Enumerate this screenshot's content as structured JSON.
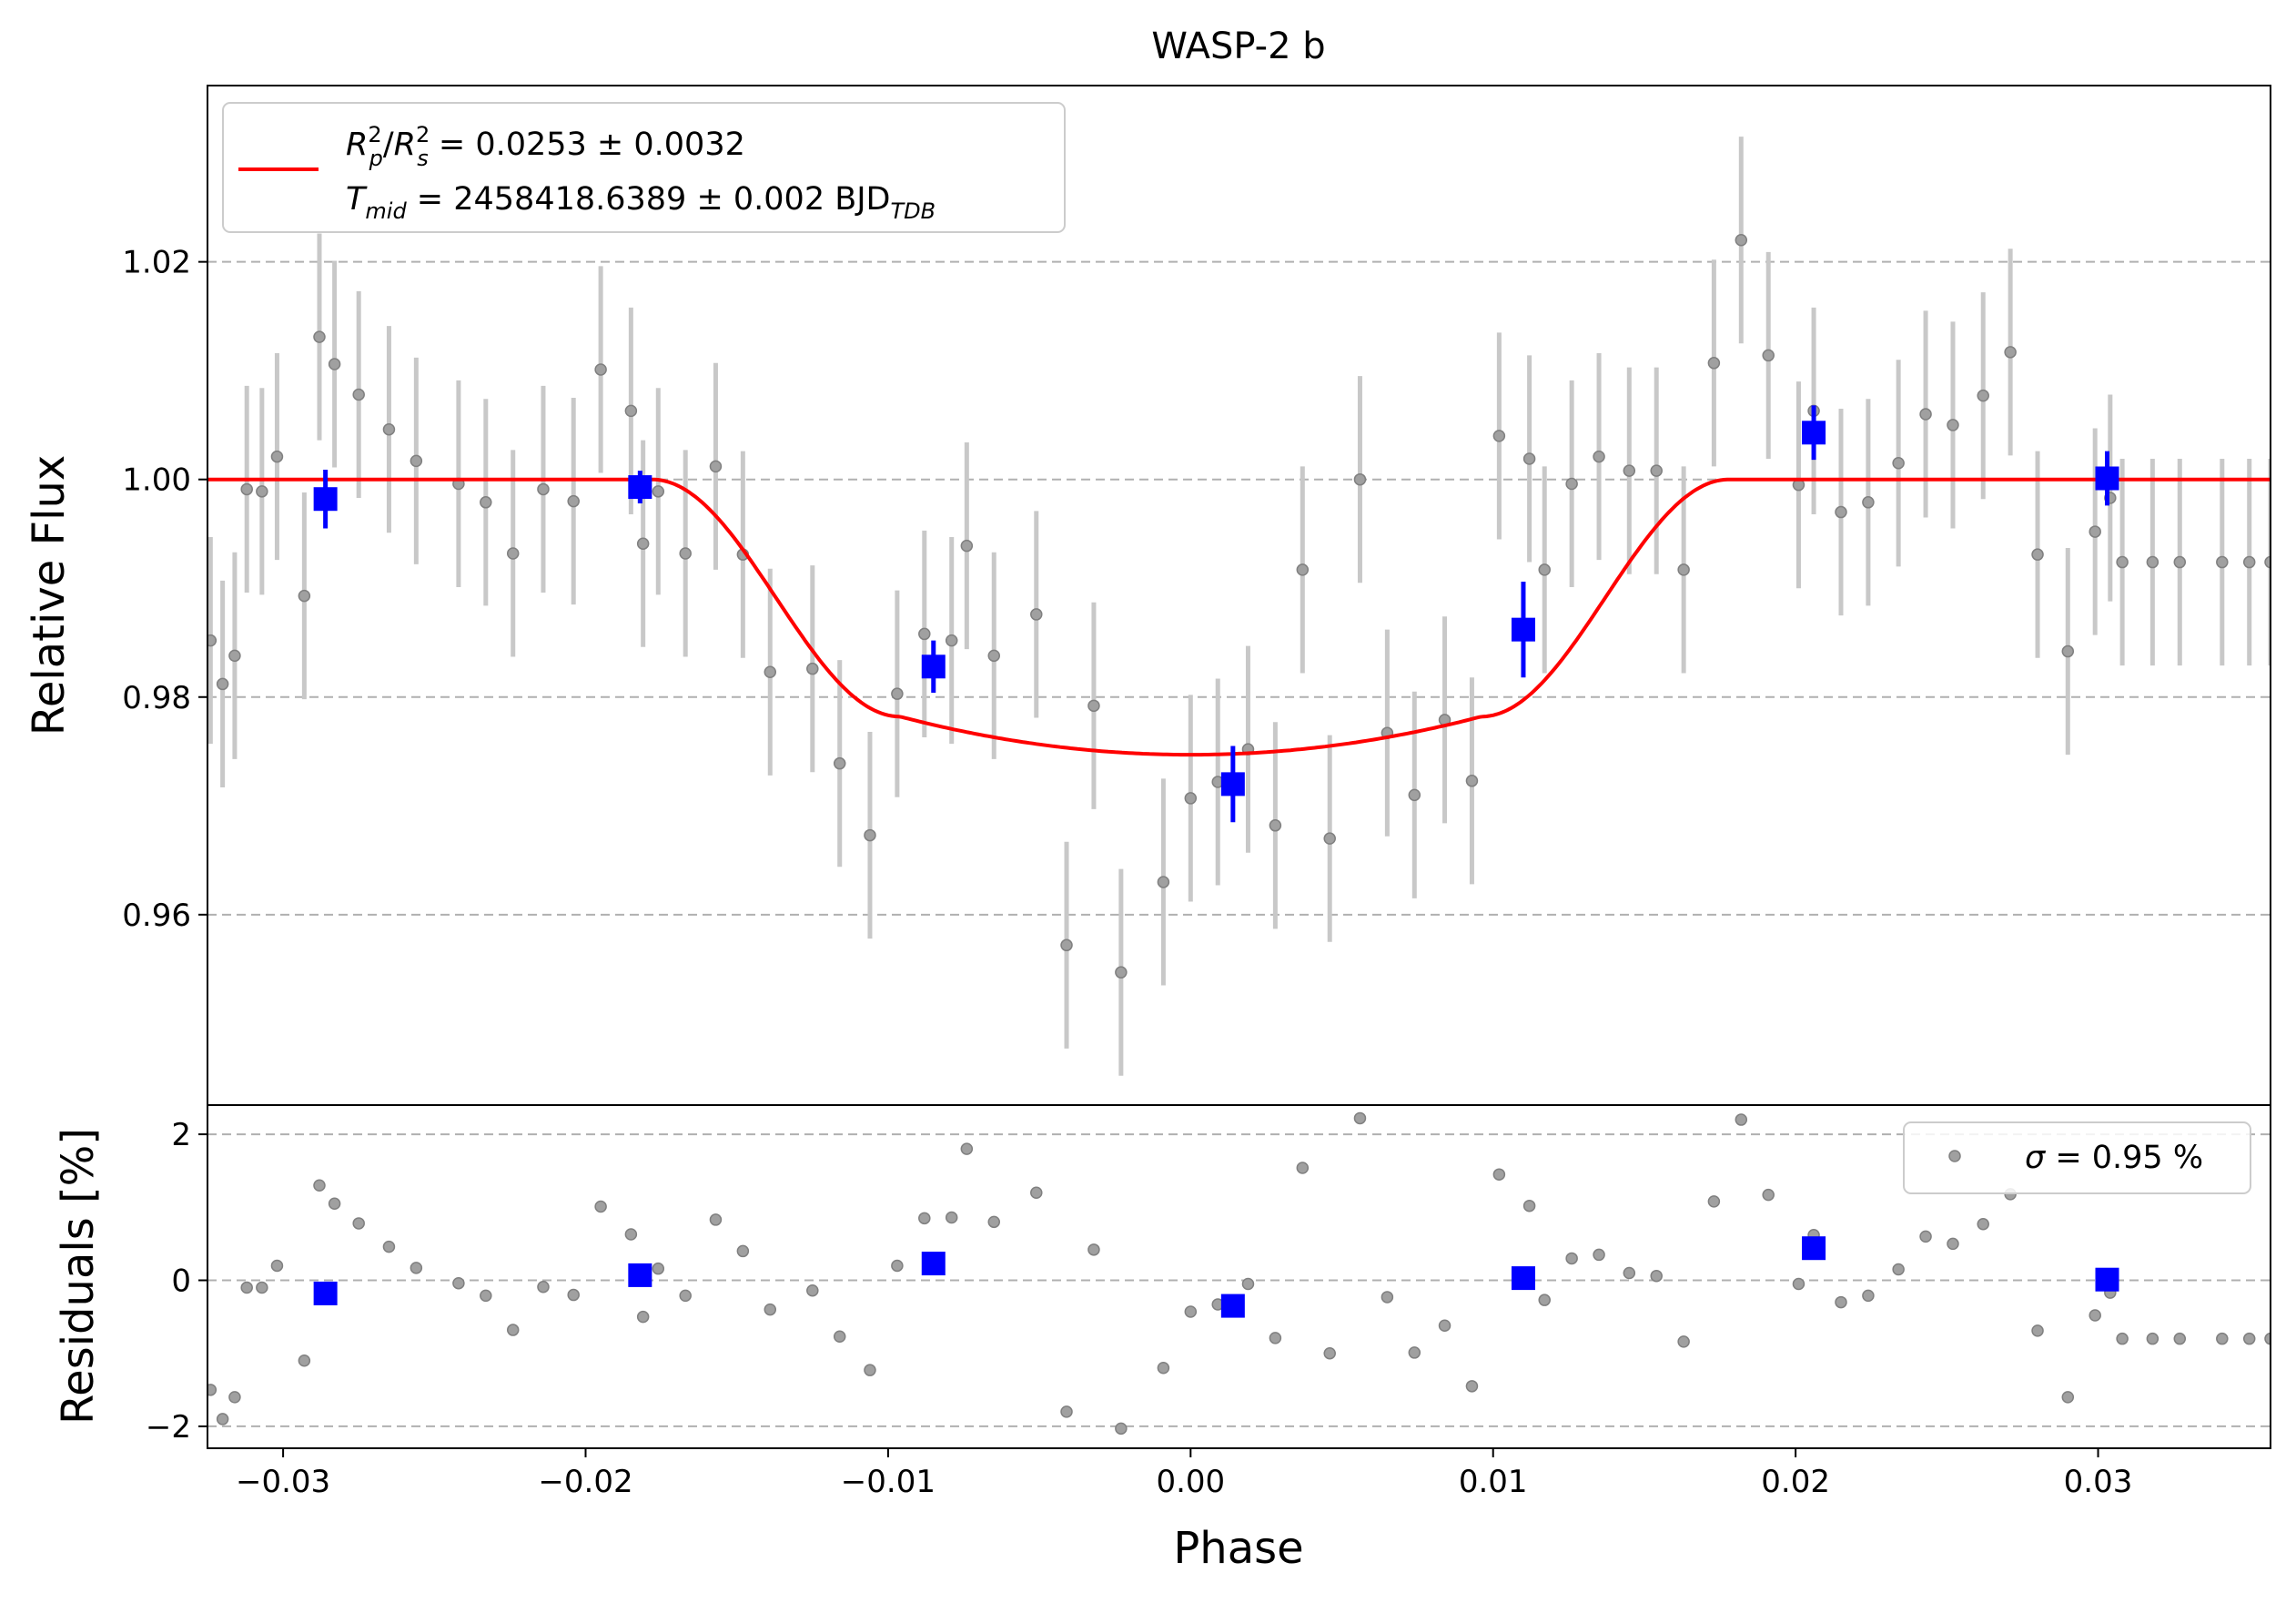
{
  "chart_data": [
    {
      "type": "scatter",
      "title": "WASP-2 b",
      "xlabel": "Phase",
      "ylabel": "Relative Flux",
      "xlim": [
        -0.0325,
        0.0357
      ],
      "ylim": [
        0.9425,
        1.0362
      ],
      "yticks": [
        "0.96",
        "0.98",
        "1.00",
        "1.02"
      ],
      "grid": "horizontal-dashed",
      "legend": {
        "placement": "top-left",
        "entries": [
          {
            "line1": "R_p^2/R_s^2 = 0.0253 ± 0.0032",
            "line2": "T_mid = 2458418.6389 ± 0.002 BJD_TDB"
          }
        ],
        "math": {
          "r": "R",
          "p": "p",
          "s": "s",
          "two": "2",
          "slash": "/",
          "r_value": " = 0.0253 ± 0.0032",
          "t": "T",
          "mid": "mid",
          "t_value": " = 2458418.6389 ± 0.002 BJD",
          "tdb": "TDB"
        }
      },
      "colors": {
        "data": "#808080",
        "errorbar": "#c8c8c8",
        "binned": "#0000ff",
        "model": "#ff0000"
      },
      "transit_model": {
        "depth": 0.0253,
        "t1": 0.0178,
        "t2": 0.0096,
        "center": 0.0
      },
      "series": [
        {
          "name": "data",
          "x": [
            -0.0324,
            -0.032,
            -0.0316,
            -0.0312,
            -0.0307,
            -0.0302,
            -0.0293,
            -0.0288,
            -0.0283,
            -0.0275,
            -0.0265,
            -0.0256,
            -0.0242,
            -0.0233,
            -0.0224,
            -0.0214,
            -0.0204,
            -0.0195,
            -0.0185,
            -0.0181,
            -0.0176,
            -0.0167,
            -0.0157,
            -0.0148,
            -0.0139,
            -0.0125,
            -0.0116,
            -0.0106,
            -0.0097,
            -0.0088,
            -0.0079,
            -0.0074,
            -0.0065,
            -0.0051,
            -0.0041,
            -0.0032,
            -0.0023,
            -0.0009,
            0.0,
            0.0009,
            0.0019,
            0.0028,
            0.0037,
            0.0046,
            0.0056,
            0.0065,
            0.0074,
            0.0084,
            0.0093,
            0.0102,
            0.0112,
            0.0117,
            0.0126,
            0.0135,
            0.0145,
            0.0154,
            0.0163,
            0.0173,
            0.0182,
            0.0191,
            0.0201,
            0.0206,
            0.0215,
            0.0224,
            0.0234,
            0.0243,
            0.0252,
            0.0262,
            0.0271,
            0.028,
            0.029,
            0.0299,
            0.0304,
            0.0308,
            0.0318,
            0.0327,
            0.0341,
            0.035,
            0.0357
          ],
          "y": [
            0.9852,
            0.9812,
            0.9838,
            0.9991,
            0.9989,
            1.0021,
            0.9893,
            1.0131,
            1.0106,
            1.0078,
            1.0046,
            1.0017,
            0.9996,
            0.9979,
            0.9932,
            0.9991,
            0.998,
            1.0101,
            1.0063,
            0.9941,
            0.9989,
            0.9932,
            1.0012,
            0.9931,
            0.9823,
            0.9826,
            0.9739,
            0.9673,
            0.9803,
            0.9858,
            0.9852,
            0.9939,
            0.9838,
            0.9876,
            0.9572,
            0.9792,
            0.9547,
            0.963,
            0.9707,
            0.9722,
            0.9752,
            0.9682,
            0.9917,
            0.967,
            1.0,
            0.9767,
            0.971,
            0.9779,
            0.9723,
            1.004,
            1.0019,
            0.9917,
            0.9996,
            1.0021,
            1.0008,
            1.0008,
            0.9917,
            1.0107,
            1.022,
            1.0114,
            0.9995,
            1.0063,
            0.997,
            0.9979,
            1.0015,
            1.006,
            1.005,
            1.0077,
            1.0117,
            0.9931,
            0.9842,
            0.9952,
            0.9983,
            0.9924,
            0.9924,
            0.9924,
            0.9924,
            0.9924,
            0.9924
          ],
          "err": 0.0095
        },
        {
          "name": "binned",
          "x": [
            -0.0286,
            -0.0182,
            -0.0085,
            0.0014,
            0.011,
            0.0206,
            0.0303
          ],
          "y": [
            0.9982,
            0.9993,
            0.9828,
            0.972,
            0.9862,
            1.0043,
            1.0001
          ],
          "err": [
            0.0027,
            0.0015,
            0.0024,
            0.0035,
            0.0044,
            0.0025,
            0.0025
          ]
        }
      ]
    },
    {
      "type": "scatter",
      "xlabel": "Phase",
      "ylabel": "Residuals [%]",
      "xlim": [
        -0.0325,
        0.0357
      ],
      "ylim": [
        -2.3,
        2.4
      ],
      "xticks": [
        "−0.03",
        "−0.02",
        "−0.01",
        "0.00",
        "0.01",
        "0.02",
        "0.03"
      ],
      "yticks": [
        "−2",
        "0",
        "2"
      ],
      "grid": "horizontal-dashed",
      "legend": {
        "placement": "top-right",
        "entries": [
          {
            "sigma": "σ",
            "label": " = 0.95 %"
          }
        ]
      },
      "series": [
        {
          "name": "residuals",
          "x": [
            -0.0324,
            -0.032,
            -0.0316,
            -0.0312,
            -0.0307,
            -0.0302,
            -0.0293,
            -0.0288,
            -0.0283,
            -0.0275,
            -0.0265,
            -0.0256,
            -0.0242,
            -0.0233,
            -0.0224,
            -0.0214,
            -0.0204,
            -0.0195,
            -0.0185,
            -0.0181,
            -0.0176,
            -0.0167,
            -0.0157,
            -0.0148,
            -0.0139,
            -0.0125,
            -0.0116,
            -0.0106,
            -0.0097,
            -0.0088,
            -0.0079,
            -0.0074,
            -0.0065,
            -0.0051,
            -0.0041,
            -0.0032,
            -0.0023,
            -0.0009,
            0.0,
            0.0009,
            0.0019,
            0.0028,
            0.0037,
            0.0046,
            0.0056,
            0.0065,
            0.0074,
            0.0084,
            0.0093,
            0.0102,
            0.0112,
            0.0117,
            0.0126,
            0.0135,
            0.0145,
            0.0154,
            0.0163,
            0.0173,
            0.0182,
            0.0191,
            0.0201,
            0.0206,
            0.0215,
            0.0224,
            0.0234,
            0.0243,
            0.0252,
            0.0262,
            0.0271,
            0.028,
            0.029,
            0.0299,
            0.0304,
            0.0308,
            0.0318,
            0.0327,
            0.0341,
            0.035,
            0.0357
          ],
          "y": [
            -1.5,
            -1.9,
            -1.6,
            -0.1,
            -0.1,
            0.2,
            -1.1,
            1.3,
            1.05,
            0.78,
            0.46,
            0.17,
            -0.04,
            -0.21,
            -0.68,
            -0.09,
            -0.2,
            1.01,
            0.63,
            -0.5,
            0.16,
            -0.21,
            0.83,
            0.4,
            -0.4,
            -0.14,
            -0.77,
            -1.23,
            0.2,
            0.85,
            0.86,
            1.8,
            0.8,
            1.2,
            -1.8,
            0.42,
            -2.03,
            -1.2,
            -0.43,
            -0.33,
            -0.05,
            -0.79,
            1.54,
            -1.0,
            2.22,
            -0.23,
            -0.99,
            -0.62,
            -1.45,
            1.45,
            1.02,
            -0.27,
            0.3,
            0.35,
            0.1,
            0.06,
            -0.84,
            1.08,
            2.2,
            1.17,
            -0.05,
            0.62,
            -0.3,
            -0.21,
            0.15,
            0.6,
            0.5,
            0.77,
            1.18,
            -0.69,
            -1.6,
            -0.48,
            -0.17,
            -0.8,
            -0.8,
            -0.8,
            -0.8,
            -0.8,
            -0.8
          ]
        },
        {
          "name": "binned-residuals",
          "x": [
            -0.0286,
            -0.0182,
            -0.0085,
            0.0014,
            0.011,
            0.0206,
            0.0303
          ],
          "y": [
            -0.18,
            0.07,
            0.23,
            -0.35,
            0.03,
            0.44,
            0.01
          ]
        }
      ]
    }
  ]
}
